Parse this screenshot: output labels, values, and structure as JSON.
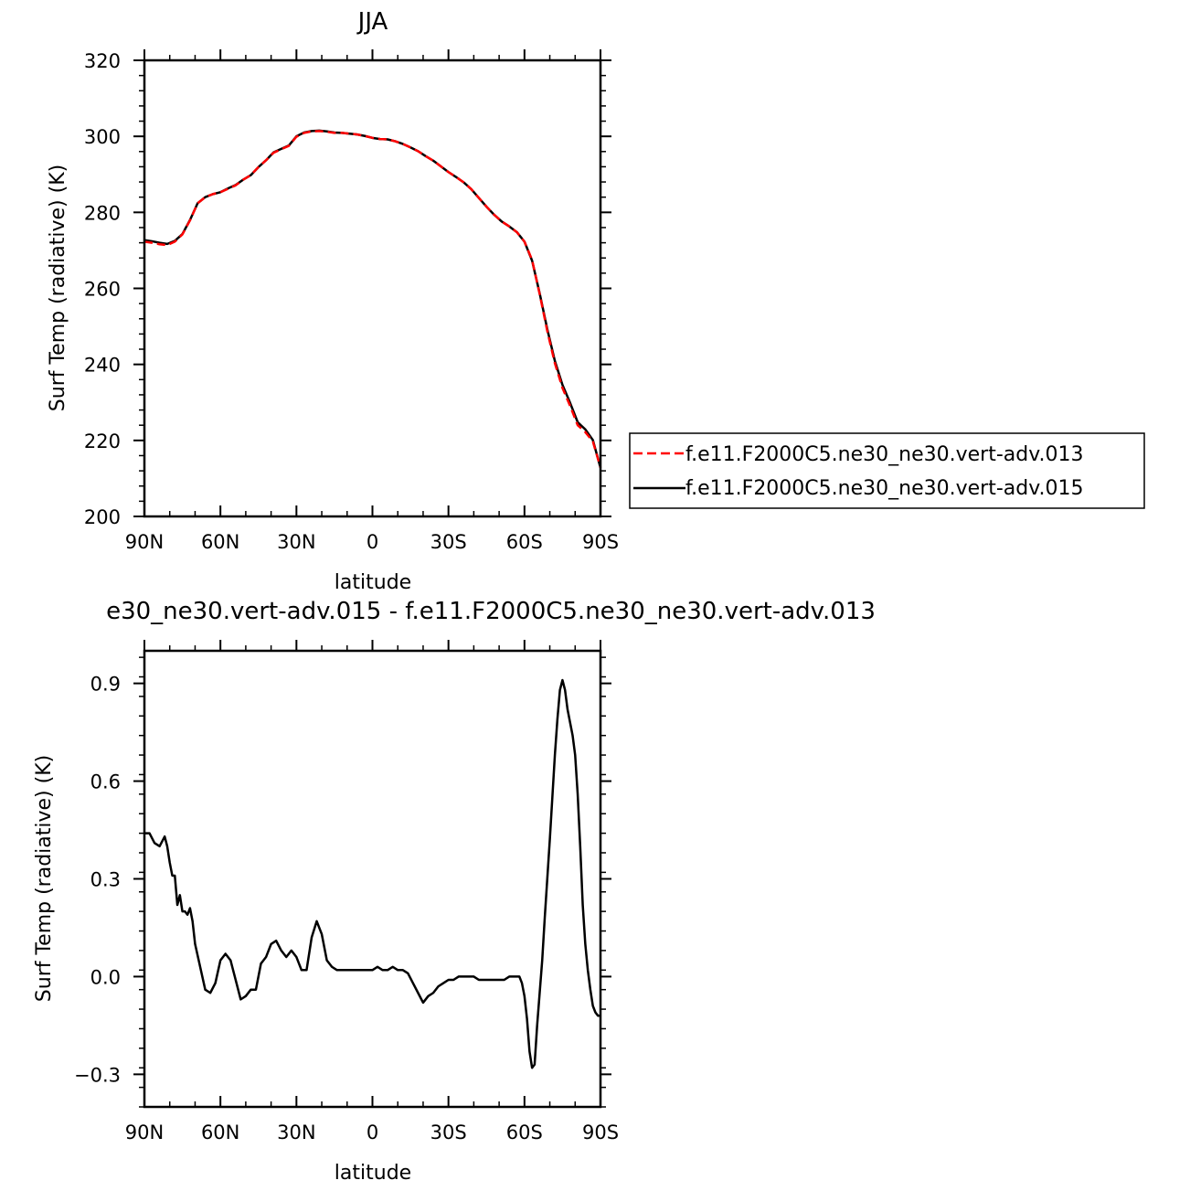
{
  "chart_data": [
    {
      "type": "line",
      "title": "JJA",
      "xlabel": "latitude",
      "ylabel": "Surf Temp (radiative) (K)",
      "xlim": [
        90,
        -90
      ],
      "ylim": [
        200,
        320
      ],
      "x_ticks": [
        {
          "value": 90,
          "label": "90N"
        },
        {
          "value": 60,
          "label": "60N"
        },
        {
          "value": 30,
          "label": "30N"
        },
        {
          "value": 0,
          "label": "0"
        },
        {
          "value": -30,
          "label": "30S"
        },
        {
          "value": -60,
          "label": "60S"
        },
        {
          "value": -90,
          "label": "90S"
        }
      ],
      "y_ticks": [
        {
          "value": 200,
          "label": "200"
        },
        {
          "value": 220,
          "label": "220"
        },
        {
          "value": 240,
          "label": "240"
        },
        {
          "value": 260,
          "label": "260"
        },
        {
          "value": 280,
          "label": "280"
        },
        {
          "value": 300,
          "label": "300"
        },
        {
          "value": 320,
          "label": "320"
        }
      ],
      "legend_position": "right",
      "series": [
        {
          "name": "f.e11.F2000C5.ne30_ne30.vert-adv.013",
          "color": "#ff0000",
          "dash": "dashed",
          "x": [
            90,
            87,
            84,
            81,
            78,
            75,
            72,
            69,
            66,
            63,
            60,
            57,
            54,
            51,
            48,
            45,
            42,
            39,
            36,
            33,
            30,
            27,
            24,
            21,
            18,
            15,
            12,
            9,
            6,
            3,
            0,
            -3,
            -6,
            -9,
            -12,
            -15,
            -18,
            -21,
            -24,
            -27,
            -30,
            -33,
            -36,
            -39,
            -42,
            -45,
            -48,
            -51,
            -54,
            -57,
            -60,
            -63,
            -66,
            -69,
            -72,
            -75,
            -78,
            -81,
            -84,
            -87,
            -90
          ],
          "values": [
            272.3,
            272.0,
            271.6,
            271.4,
            272.3,
            274.2,
            277.9,
            282.4,
            284.0,
            284.8,
            285.3,
            286.2,
            287.1,
            288.6,
            289.8,
            291.9,
            293.7,
            295.7,
            296.6,
            297.5,
            299.9,
            300.9,
            301.3,
            301.4,
            301.2,
            300.9,
            300.9,
            300.7,
            300.5,
            300.1,
            299.6,
            299.3,
            299.2,
            298.7,
            298.0,
            297.1,
            296.1,
            294.8,
            293.6,
            292.1,
            290.6,
            289.3,
            287.9,
            286.1,
            283.8,
            281.5,
            279.4,
            277.6,
            276.3,
            274.8,
            272.3,
            267.5,
            258.5,
            248.8,
            240.3,
            233.8,
            229.1,
            224.0,
            222.2,
            219.7,
            212.9
          ]
        },
        {
          "name": "f.e11.F2000C5.ne30_ne30.vert-adv.015",
          "color": "#000000",
          "dash": "solid",
          "x": [
            90,
            87,
            84,
            81,
            78,
            75,
            72,
            69,
            66,
            63,
            60,
            57,
            54,
            51,
            48,
            45,
            42,
            39,
            36,
            33,
            30,
            27,
            24,
            21,
            18,
            15,
            12,
            9,
            6,
            3,
            0,
            -3,
            -6,
            -9,
            -12,
            -15,
            -18,
            -21,
            -24,
            -27,
            -30,
            -33,
            -36,
            -39,
            -42,
            -45,
            -48,
            -51,
            -54,
            -57,
            -60,
            -63,
            -66,
            -69,
            -72,
            -75,
            -78,
            -81,
            -84,
            -87,
            -90
          ],
          "values": [
            272.7,
            272.4,
            272.0,
            271.7,
            272.5,
            274.3,
            278.0,
            282.4,
            284.0,
            284.8,
            285.3,
            286.3,
            287.2,
            288.6,
            289.8,
            291.9,
            293.7,
            295.8,
            296.7,
            297.6,
            300.0,
            301.0,
            301.4,
            301.5,
            301.3,
            301.0,
            300.9,
            300.7,
            300.5,
            300.1,
            299.6,
            299.3,
            299.2,
            298.7,
            298.0,
            297.1,
            296.1,
            294.8,
            293.6,
            292.1,
            290.6,
            289.3,
            287.9,
            286.1,
            283.8,
            281.5,
            279.4,
            277.6,
            276.3,
            274.8,
            272.3,
            267.3,
            258.7,
            249.3,
            240.9,
            234.6,
            229.9,
            224.8,
            222.9,
            220.1,
            212.8
          ]
        }
      ]
    },
    {
      "type": "line",
      "title": "e30_ne30.vert-adv.015 - f.e11.F2000C5.ne30_ne30.vert-adv.013",
      "xlabel": "latitude",
      "ylabel": "Surf Temp (radiative) (K)",
      "xlim": [
        90,
        -90
      ],
      "ylim": [
        -0.4,
        1.0
      ],
      "x_ticks": [
        {
          "value": 90,
          "label": "90N"
        },
        {
          "value": 60,
          "label": "60N"
        },
        {
          "value": 30,
          "label": "30N"
        },
        {
          "value": 0,
          "label": "0"
        },
        {
          "value": -30,
          "label": "30S"
        },
        {
          "value": -60,
          "label": "60S"
        },
        {
          "value": -90,
          "label": "90S"
        }
      ],
      "y_ticks": [
        {
          "value": -0.3,
          "label": "−0.3"
        },
        {
          "value": 0.0,
          "label": "0.0"
        },
        {
          "value": 0.3,
          "label": "0.3"
        },
        {
          "value": 0.6,
          "label": "0.6"
        },
        {
          "value": 0.9,
          "label": "0.9"
        }
      ],
      "series": [
        {
          "color": "#000000",
          "dash": "solid",
          "x": [
            90,
            88,
            86,
            84,
            82,
            81,
            80,
            79,
            78,
            77,
            76,
            75,
            74,
            73,
            72,
            71,
            70,
            68,
            66,
            64,
            62,
            60,
            58,
            56,
            54,
            52,
            50,
            48,
            46,
            44,
            43,
            42,
            41,
            40,
            38,
            36,
            34,
            33,
            32,
            30,
            29,
            28,
            26,
            24,
            22,
            20,
            18,
            16,
            14,
            12,
            10,
            8,
            6,
            4,
            2,
            0,
            -2,
            -4,
            -6,
            -8,
            -10,
            -12,
            -14,
            -16,
            -18,
            -20,
            -22,
            -24,
            -26,
            -28,
            -30,
            -32,
            -34,
            -36,
            -38,
            -40,
            -42,
            -44,
            -46,
            -48,
            -50,
            -52,
            -54,
            -56,
            -57,
            -58,
            -59,
            -60,
            -61,
            -62,
            -63,
            -64,
            -65,
            -66,
            -67,
            -68,
            -69,
            -70,
            -71,
            -72,
            -73,
            -74,
            -75,
            -76,
            -77,
            -78,
            -79,
            -80,
            -81,
            -82,
            -83,
            -84,
            -85,
            -86,
            -87,
            -88,
            -89,
            -90
          ],
          "values": [
            0.44,
            0.44,
            0.41,
            0.4,
            0.43,
            0.4,
            0.35,
            0.31,
            0.31,
            0.22,
            0.25,
            0.2,
            0.2,
            0.19,
            0.21,
            0.17,
            0.1,
            0.03,
            -0.04,
            -0.05,
            -0.02,
            0.05,
            0.07,
            0.05,
            -0.01,
            -0.07,
            -0.06,
            -0.04,
            -0.04,
            0.04,
            0.05,
            0.06,
            0.08,
            0.1,
            0.11,
            0.08,
            0.06,
            0.07,
            0.08,
            0.06,
            0.04,
            0.02,
            0.02,
            0.12,
            0.17,
            0.13,
            0.05,
            0.03,
            0.02,
            0.02,
            0.02,
            0.02,
            0.02,
            0.02,
            0.02,
            0.02,
            0.03,
            0.02,
            0.02,
            0.03,
            0.02,
            0.02,
            0.01,
            -0.02,
            -0.05,
            -0.08,
            -0.06,
            -0.05,
            -0.03,
            -0.02,
            -0.01,
            -0.01,
            0.0,
            0.0,
            0.0,
            0.0,
            -0.01,
            -0.01,
            -0.01,
            -0.01,
            -0.01,
            -0.01,
            0.0,
            0.0,
            0.0,
            0.0,
            -0.02,
            -0.06,
            -0.13,
            -0.23,
            -0.28,
            -0.27,
            -0.15,
            -0.05,
            0.05,
            0.18,
            0.3,
            0.42,
            0.55,
            0.68,
            0.79,
            0.88,
            0.91,
            0.88,
            0.82,
            0.78,
            0.74,
            0.68,
            0.56,
            0.4,
            0.22,
            0.1,
            0.02,
            -0.04,
            -0.09,
            -0.11,
            -0.12,
            -0.12
          ]
        }
      ]
    }
  ]
}
